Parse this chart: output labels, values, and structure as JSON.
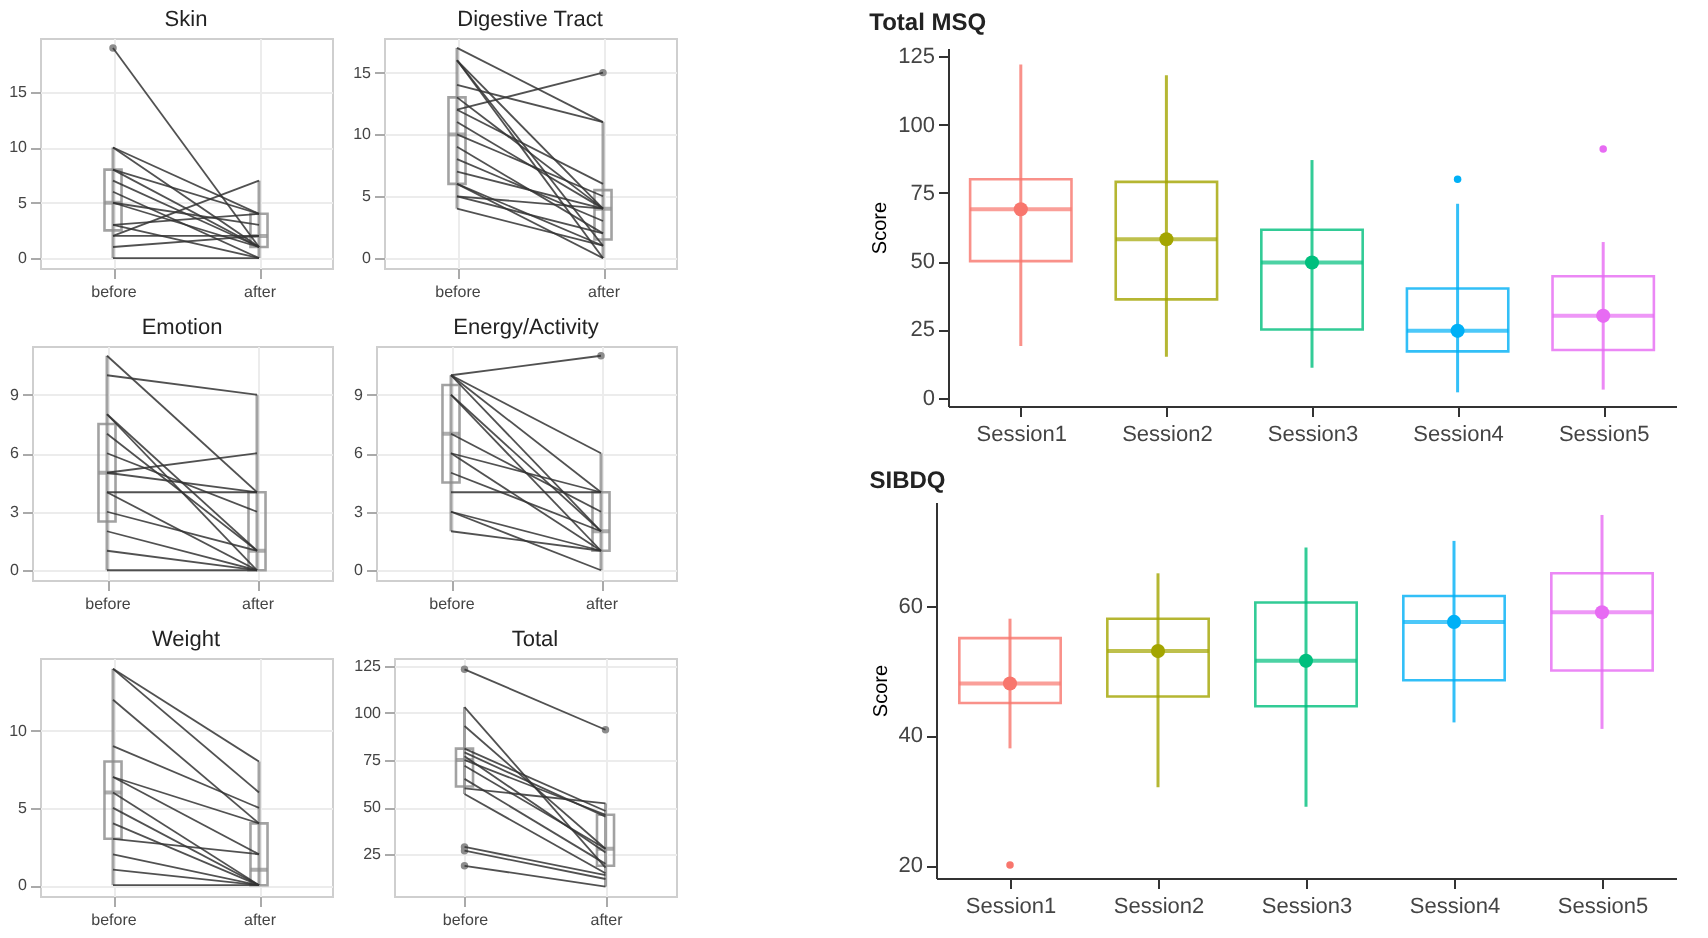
{
  "chart_data": [
    {
      "type": "box",
      "title": "Skin",
      "categories": [
        "before",
        "after"
      ],
      "color": "#8c8c8c",
      "ylim": [
        -0.9,
        19.9
      ],
      "yticks": [
        0,
        5,
        10,
        15
      ],
      "grid": true,
      "boxes": [
        {
          "low": 0,
          "q1": 2.5,
          "median": 5,
          "q3": 8,
          "high": 10,
          "outliers": [
            19
          ]
        },
        {
          "low": 0,
          "q1": 1,
          "median": 2,
          "q3": 4,
          "high": 7
        }
      ],
      "series": [
        {
          "type": "line",
          "color": "#333333",
          "values": [
            19,
            1
          ]
        },
        {
          "type": "line",
          "color": "#333333",
          "values": [
            10,
            4
          ]
        },
        {
          "type": "line",
          "color": "#333333",
          "values": [
            10,
            1
          ]
        },
        {
          "type": "line",
          "color": "#333333",
          "values": [
            8,
            4
          ]
        },
        {
          "type": "line",
          "color": "#333333",
          "values": [
            8,
            1
          ]
        },
        {
          "type": "line",
          "color": "#333333",
          "values": [
            7,
            1
          ]
        },
        {
          "type": "line",
          "color": "#333333",
          "values": [
            6,
            0
          ]
        },
        {
          "type": "line",
          "color": "#333333",
          "values": [
            5,
            1
          ]
        },
        {
          "type": "line",
          "color": "#333333",
          "values": [
            5,
            3
          ]
        },
        {
          "type": "line",
          "color": "#333333",
          "values": [
            3,
            4
          ]
        },
        {
          "type": "line",
          "color": "#333333",
          "values": [
            3,
            0
          ]
        },
        {
          "type": "line",
          "color": "#333333",
          "values": [
            2,
            2
          ]
        },
        {
          "type": "line",
          "color": "#333333",
          "values": [
            1,
            2
          ]
        },
        {
          "type": "line",
          "color": "#333333",
          "values": [
            0,
            0
          ]
        },
        {
          "type": "line",
          "color": "#333333",
          "values": [
            2,
            7
          ]
        }
      ]
    },
    {
      "type": "box",
      "title": "Digestive Tract",
      "categories": [
        "before",
        "after"
      ],
      "color": "#8c8c8c",
      "ylim": [
        -0.8,
        17.8
      ],
      "yticks": [
        0,
        5,
        10,
        15
      ],
      "grid": true,
      "boxes": [
        {
          "low": 4,
          "q1": 6,
          "median": 10,
          "q3": 13,
          "high": 17
        },
        {
          "low": 0,
          "q1": 1.5,
          "median": 4,
          "q3": 5.5,
          "high": 11,
          "outliers": [
            15
          ]
        }
      ],
      "series": [
        {
          "type": "line",
          "color": "#333333",
          "values": [
            17,
            11
          ]
        },
        {
          "type": "line",
          "color": "#333333",
          "values": [
            16,
            4
          ]
        },
        {
          "type": "line",
          "color": "#333333",
          "values": [
            16,
            1
          ]
        },
        {
          "type": "line",
          "color": "#333333",
          "values": [
            16,
            0
          ]
        },
        {
          "type": "line",
          "color": "#333333",
          "values": [
            14,
            11
          ]
        },
        {
          "type": "line",
          "color": "#333333",
          "values": [
            13,
            4
          ]
        },
        {
          "type": "line",
          "color": "#333333",
          "values": [
            12,
            15
          ]
        },
        {
          "type": "line",
          "color": "#333333",
          "values": [
            12,
            6
          ]
        },
        {
          "type": "line",
          "color": "#333333",
          "values": [
            11,
            4
          ]
        },
        {
          "type": "line",
          "color": "#333333",
          "values": [
            10,
            5
          ]
        },
        {
          "type": "line",
          "color": "#333333",
          "values": [
            9,
            2
          ]
        },
        {
          "type": "line",
          "color": "#333333",
          "values": [
            8,
            3
          ]
        },
        {
          "type": "line",
          "color": "#333333",
          "values": [
            7,
            4
          ]
        },
        {
          "type": "line",
          "color": "#333333",
          "values": [
            6,
            1
          ]
        },
        {
          "type": "line",
          "color": "#333333",
          "values": [
            6,
            0
          ]
        },
        {
          "type": "line",
          "color": "#333333",
          "values": [
            5,
            2
          ]
        },
        {
          "type": "line",
          "color": "#333333",
          "values": [
            5,
            4
          ]
        },
        {
          "type": "line",
          "color": "#333333",
          "values": [
            4,
            1
          ]
        }
      ]
    },
    {
      "type": "box",
      "title": "Emotion",
      "categories": [
        "before",
        "after"
      ],
      "color": "#8c8c8c",
      "ylim": [
        -0.5,
        11.5
      ],
      "yticks": [
        0,
        3,
        6,
        9
      ],
      "grid": true,
      "boxes": [
        {
          "low": 0,
          "q1": 2.5,
          "median": 5,
          "q3": 7.5,
          "high": 11
        },
        {
          "low": 0,
          "q1": 0,
          "median": 1,
          "q3": 4,
          "high": 9
        }
      ],
      "series": [
        {
          "type": "line",
          "color": "#333333",
          "values": [
            11,
            4
          ]
        },
        {
          "type": "line",
          "color": "#333333",
          "values": [
            10,
            9
          ]
        },
        {
          "type": "line",
          "color": "#333333",
          "values": [
            8,
            1
          ]
        },
        {
          "type": "line",
          "color": "#333333",
          "values": [
            8,
            0
          ]
        },
        {
          "type": "line",
          "color": "#333333",
          "values": [
            7,
            1
          ]
        },
        {
          "type": "line",
          "color": "#333333",
          "values": [
            6,
            3
          ]
        },
        {
          "type": "line",
          "color": "#333333",
          "values": [
            5,
            6
          ]
        },
        {
          "type": "line",
          "color": "#333333",
          "values": [
            5,
            4
          ]
        },
        {
          "type": "line",
          "color": "#333333",
          "values": [
            4,
            0
          ]
        },
        {
          "type": "line",
          "color": "#333333",
          "values": [
            4,
            4
          ]
        },
        {
          "type": "line",
          "color": "#333333",
          "values": [
            3,
            1
          ]
        },
        {
          "type": "line",
          "color": "#333333",
          "values": [
            2,
            0
          ]
        },
        {
          "type": "line",
          "color": "#333333",
          "values": [
            1,
            0
          ]
        },
        {
          "type": "line",
          "color": "#333333",
          "values": [
            0,
            0
          ]
        }
      ]
    },
    {
      "type": "box",
      "title": "Energy/Activity",
      "categories": [
        "before",
        "after"
      ],
      "color": "#8c8c8c",
      "ylim": [
        -0.5,
        11.5
      ],
      "yticks": [
        0,
        3,
        6,
        9
      ],
      "grid": true,
      "boxes": [
        {
          "low": 2,
          "q1": 4.5,
          "median": 7,
          "q3": 9.5,
          "high": 10
        },
        {
          "low": 0,
          "q1": 1,
          "median": 2,
          "q3": 4,
          "high": 6,
          "outliers": [
            11
          ]
        }
      ],
      "series": [
        {
          "type": "line",
          "color": "#333333",
          "values": [
            10,
            11
          ]
        },
        {
          "type": "line",
          "color": "#333333",
          "values": [
            10,
            6
          ]
        },
        {
          "type": "line",
          "color": "#333333",
          "values": [
            10,
            4
          ]
        },
        {
          "type": "line",
          "color": "#333333",
          "values": [
            10,
            2
          ]
        },
        {
          "type": "line",
          "color": "#333333",
          "values": [
            9,
            2
          ]
        },
        {
          "type": "line",
          "color": "#333333",
          "values": [
            9,
            1
          ]
        },
        {
          "type": "line",
          "color": "#333333",
          "values": [
            7,
            3
          ]
        },
        {
          "type": "line",
          "color": "#333333",
          "values": [
            6,
            1
          ]
        },
        {
          "type": "line",
          "color": "#333333",
          "values": [
            6,
            4
          ]
        },
        {
          "type": "line",
          "color": "#333333",
          "values": [
            5,
            2
          ]
        },
        {
          "type": "line",
          "color": "#333333",
          "values": [
            4,
            4
          ]
        },
        {
          "type": "line",
          "color": "#333333",
          "values": [
            3,
            1
          ]
        },
        {
          "type": "line",
          "color": "#333333",
          "values": [
            3,
            0
          ]
        },
        {
          "type": "line",
          "color": "#333333",
          "values": [
            2,
            1
          ]
        }
      ]
    },
    {
      "type": "box",
      "title": "Weight",
      "categories": [
        "before",
        "after"
      ],
      "color": "#8c8c8c",
      "ylim": [
        -0.7,
        14.7
      ],
      "yticks": [
        0,
        5,
        10
      ],
      "grid": true,
      "boxes": [
        {
          "low": 0,
          "q1": 3,
          "median": 6,
          "q3": 8,
          "high": 14
        },
        {
          "low": 0,
          "q1": 0,
          "median": 1,
          "q3": 4,
          "high": 8
        }
      ],
      "series": [
        {
          "type": "line",
          "color": "#333333",
          "values": [
            14,
            8
          ]
        },
        {
          "type": "line",
          "color": "#333333",
          "values": [
            14,
            6
          ]
        },
        {
          "type": "line",
          "color": "#333333",
          "values": [
            12,
            4
          ]
        },
        {
          "type": "line",
          "color": "#333333",
          "values": [
            9,
            5
          ]
        },
        {
          "type": "line",
          "color": "#333333",
          "values": [
            7,
            4
          ]
        },
        {
          "type": "line",
          "color": "#333333",
          "values": [
            7,
            2
          ]
        },
        {
          "type": "line",
          "color": "#333333",
          "values": [
            6,
            0
          ]
        },
        {
          "type": "line",
          "color": "#333333",
          "values": [
            5,
            0
          ]
        },
        {
          "type": "line",
          "color": "#333333",
          "values": [
            4,
            0
          ]
        },
        {
          "type": "line",
          "color": "#333333",
          "values": [
            3,
            2
          ]
        },
        {
          "type": "line",
          "color": "#333333",
          "values": [
            2,
            0
          ]
        },
        {
          "type": "line",
          "color": "#333333",
          "values": [
            1,
            0
          ]
        },
        {
          "type": "line",
          "color": "#333333",
          "values": [
            0,
            0
          ]
        }
      ]
    },
    {
      "type": "box",
      "title": "Total",
      "categories": [
        "before",
        "after"
      ],
      "color": "#8c8c8c",
      "ylim": [
        3,
        129
      ],
      "yticks": [
        25,
        50,
        75,
        100,
        125
      ],
      "grid": true,
      "boxes": [
        {
          "low": 57,
          "q1": 61,
          "median": 75,
          "q3": 81,
          "high": 103,
          "outliers": [
            123,
            29,
            27,
            19
          ]
        },
        {
          "low": 8,
          "q1": 19,
          "median": 28,
          "q3": 46,
          "high": 52,
          "outliers": [
            91
          ]
        }
      ],
      "series": [
        {
          "type": "line",
          "color": "#333333",
          "values": [
            123,
            91
          ]
        },
        {
          "type": "line",
          "color": "#333333",
          "values": [
            103,
            18
          ]
        },
        {
          "type": "line",
          "color": "#333333",
          "values": [
            93,
            28
          ]
        },
        {
          "type": "line",
          "color": "#333333",
          "values": [
            81,
            48
          ]
        },
        {
          "type": "line",
          "color": "#333333",
          "values": [
            79,
            45
          ]
        },
        {
          "type": "line",
          "color": "#333333",
          "values": [
            77,
            26
          ]
        },
        {
          "type": "line",
          "color": "#333333",
          "values": [
            75,
            46
          ]
        },
        {
          "type": "line",
          "color": "#333333",
          "values": [
            72,
            28
          ]
        },
        {
          "type": "line",
          "color": "#333333",
          "values": [
            65,
            20
          ]
        },
        {
          "type": "line",
          "color": "#333333",
          "values": [
            60,
            52
          ]
        },
        {
          "type": "line",
          "color": "#333333",
          "values": [
            57,
            15
          ]
        },
        {
          "type": "line",
          "color": "#333333",
          "values": [
            29,
            14
          ]
        },
        {
          "type": "line",
          "color": "#333333",
          "values": [
            27,
            12
          ]
        },
        {
          "type": "line",
          "color": "#333333",
          "values": [
            19,
            8
          ]
        }
      ]
    },
    {
      "type": "box",
      "title": "Total MSQ",
      "ylabel": "Score",
      "categories": [
        "Session1",
        "Session2",
        "Session3",
        "Session4",
        "Session5"
      ],
      "colors": [
        "#f8766d",
        "#a3a500",
        "#00bf7d",
        "#00b0f6",
        "#e76bf3"
      ],
      "ylim": [
        -3,
        128
      ],
      "yticks": [
        0,
        25,
        50,
        75,
        100,
        125
      ],
      "boxes": [
        {
          "low": 19,
          "q1": 50,
          "median": 69,
          "q3": 80,
          "high": 122,
          "mean": 69
        },
        {
          "low": 15,
          "q1": 36,
          "median": 58,
          "q3": 79,
          "high": 118,
          "mean": 58
        },
        {
          "low": 11,
          "q1": 25,
          "median": 49.5,
          "q3": 61.5,
          "high": 87,
          "mean": 49.5
        },
        {
          "low": 2,
          "q1": 17,
          "median": 24.5,
          "q3": 40,
          "high": 71,
          "mean": 24.5,
          "outliers": [
            80
          ]
        },
        {
          "low": 3,
          "q1": 17.5,
          "median": 30,
          "q3": 44.5,
          "high": 57,
          "mean": 30,
          "outliers": [
            91
          ]
        }
      ]
    },
    {
      "type": "box",
      "title": "SIBDQ",
      "ylabel": "Score",
      "categories": [
        "Session1",
        "Session2",
        "Session3",
        "Session4",
        "Session5"
      ],
      "colors": [
        "#f8766d",
        "#a3a500",
        "#00bf7d",
        "#00b0f6",
        "#e76bf3"
      ],
      "ylim": [
        18,
        76
      ],
      "yticks": [
        20,
        40,
        60
      ],
      "boxes": [
        {
          "low": 38,
          "q1": 45,
          "median": 48,
          "q3": 55,
          "high": 58,
          "mean": 48,
          "outliers": [
            20
          ]
        },
        {
          "low": 32,
          "q1": 46,
          "median": 53,
          "q3": 58,
          "high": 65,
          "mean": 53
        },
        {
          "low": 29,
          "q1": 44.5,
          "median": 51.5,
          "q3": 60.5,
          "high": 69,
          "mean": 51.5
        },
        {
          "low": 42,
          "q1": 48.5,
          "median": 57.5,
          "q3": 61.5,
          "high": 70,
          "mean": 57.5
        },
        {
          "low": 41,
          "q1": 50,
          "median": 59,
          "q3": 65,
          "high": 74,
          "mean": 59
        }
      ]
    }
  ]
}
